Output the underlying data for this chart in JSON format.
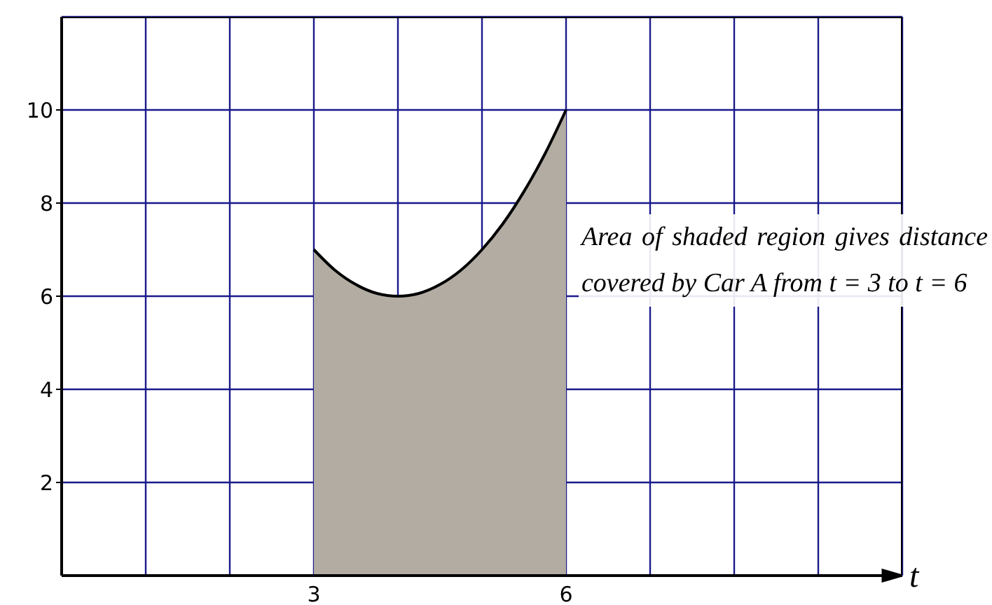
{
  "chart_data": {
    "type": "area",
    "xlabel": "t",
    "x": [
      3,
      3.25,
      3.5,
      3.75,
      4,
      4.25,
      4.5,
      4.75,
      5,
      5.25,
      5.5,
      5.75,
      6
    ],
    "series": [
      {
        "color": "#b3aca3",
        "values": [
          7,
          6.56,
          6.25,
          6.06,
          6,
          6.06,
          6.25,
          6.56,
          7,
          7.56,
          8.25,
          9.06,
          10
        ]
      }
    ],
    "xlim": [
      0,
      10
    ],
    "xticks": [
      {
        "value": 1,
        "label": null
      },
      {
        "value": 2,
        "label": null
      },
      3,
      {
        "value": 4,
        "label": null
      },
      {
        "value": 5,
        "label": null
      },
      6,
      {
        "value": 7,
        "label": null
      },
      {
        "value": 8,
        "label": null
      },
      {
        "value": 9,
        "label": null
      }
    ],
    "ylim": [
      0,
      12
    ],
    "yticks": [
      2,
      4,
      6,
      8,
      10
    ],
    "grid": true,
    "annotations": [
      "Area of shaded region gives distance covered by Car A from t = 3 to t = 6"
    ]
  }
}
